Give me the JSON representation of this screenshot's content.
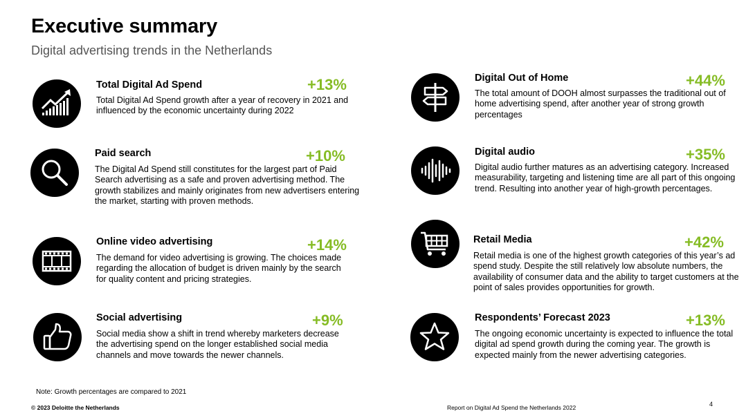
{
  "header": {
    "title": "Executive summary",
    "subtitle": "Digital advertising trends in the Netherlands"
  },
  "items": [
    {
      "title": "Total Digital Ad Spend",
      "pct": "+13%",
      "icon": "growth-chart-icon",
      "desc": "Total Digital Ad Spend growth after a year of recovery in 2021 and influenced by the economic uncertainty during 2022"
    },
    {
      "title": "Paid search",
      "pct": "+10%",
      "icon": "search-icon",
      "desc": "The Digital Ad Spend still constitutes for the largest part of Paid Search advertising as a safe and proven advertising method. The growth stabilizes and mainly originates from new advertisers entering the market, starting with proven methods."
    },
    {
      "title": "Online video advertising",
      "pct": "+14%",
      "icon": "film-strip-icon",
      "desc": "The demand for video advertising is growing. The choices made regarding the allocation of budget is driven mainly by the search for quality content and pricing strategies."
    },
    {
      "title": "Social advertising",
      "pct": "+9%",
      "icon": "thumbs-up-icon",
      "desc": "Social media show a shift in trend whereby marketers decrease the advertising spend on the longer established social media channels and move towards the newer channels."
    },
    {
      "title": "Digital Out of Home",
      "pct": "+44%",
      "icon": "signpost-icon",
      "desc": "The total amount of DOOH almost surpasses the traditional out of home advertising spend, after another year of strong growth percentages"
    },
    {
      "title": "Digital audio",
      "pct": "+35%",
      "icon": "sound-wave-icon",
      "desc": "Digital audio further matures as an advertising category. Increased measurability, targeting and listening time are all part of this ongoing trend. Resulting into another year of high-growth percentages."
    },
    {
      "title": "Retail Media",
      "pct": "+42%",
      "icon": "shopping-cart-icon",
      "desc": "Retail media is one of the highest growth categories of this year’s ad spend study. Despite the still relatively low absolute numbers, the availability of consumer data and the ability to target customers at the point of sales provides opportunities for growth."
    },
    {
      "title": "Respondents’ Forecast 2023",
      "pct": "+13%",
      "icon": "star-icon",
      "desc": "The ongoing economic uncertainty is expected to influence the total digital ad spend growth during the coming year. The growth is expected mainly from the newer advertising categories."
    }
  ],
  "footer": {
    "note": "Note: Growth percentages are compared to 2021",
    "copyright": "© 2023 Deloitte the Netherlands",
    "report": "Report on Digital Ad Spend the Netherlands 2022",
    "page": "4"
  },
  "colors": {
    "accent": "#86bc25",
    "icon_bg": "#000000"
  }
}
